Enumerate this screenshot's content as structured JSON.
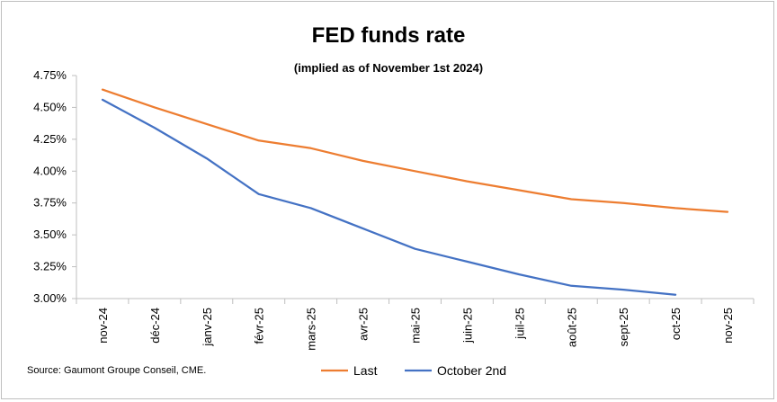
{
  "chart_data": {
    "type": "line",
    "title": "FED funds rate",
    "subtitle": "(implied as of November 1st 2024)",
    "source": "Source: Gaumont Groupe Conseil, CME.",
    "categories": [
      "nov-24",
      "déc-24",
      "janv-25",
      "févr-25",
      "mars-25",
      "avr-25",
      "mai-25",
      "juin-25",
      "juil-25",
      "août-25",
      "sept-25",
      "oct-25",
      "nov-25"
    ],
    "y_ticks": [
      "3.00%",
      "3.25%",
      "3.50%",
      "3.75%",
      "4.00%",
      "4.25%",
      "4.50%",
      "4.75%"
    ],
    "ylim": [
      3.0,
      4.75
    ],
    "grid": false,
    "legend_position": "bottom",
    "series": [
      {
        "name": "Last",
        "color": "#ED7D31",
        "values": [
          4.64,
          4.5,
          4.37,
          4.24,
          4.18,
          4.08,
          4.0,
          3.92,
          3.85,
          3.78,
          3.75,
          3.71,
          3.68
        ]
      },
      {
        "name": "October 2nd",
        "color": "#4472C4",
        "values": [
          4.56,
          4.34,
          4.1,
          3.82,
          3.71,
          3.55,
          3.39,
          3.29,
          3.19,
          3.1,
          3.07,
          3.03,
          null
        ]
      }
    ]
  }
}
